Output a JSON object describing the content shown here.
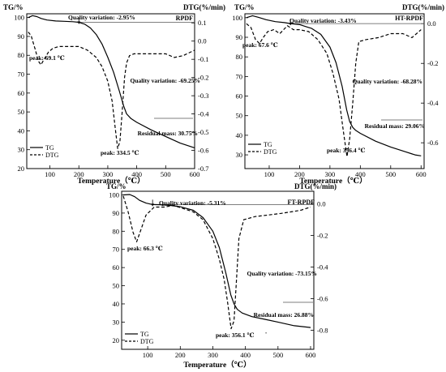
{
  "chart_data": [
    {
      "type": "line",
      "title": "RPDF",
      "xlabel": "Temperature（℃）",
      "ylabel_left": "TG/%",
      "ylabel_right": "DTG(%/min)",
      "xlim": [
        20,
        600
      ],
      "ylim_left": [
        20,
        102
      ],
      "ylim_right": [
        -0.7,
        0.15
      ],
      "xticks": [
        100,
        200,
        300,
        400,
        500,
        600
      ],
      "yticks_left": [
        20,
        30,
        40,
        50,
        60,
        70,
        80,
        90,
        100
      ],
      "yticks_right": [
        0.1,
        0.0,
        -0.1,
        -0.2,
        -0.3,
        -0.4,
        -0.5,
        -0.6,
        -0.7
      ],
      "xtick_labels": [
        "100",
        "200",
        "300",
        "400",
        "500",
        "600"
      ],
      "ytick_labels_left": [
        "20",
        "30",
        "40",
        "50",
        "60",
        "70",
        "80",
        "90",
        "100"
      ],
      "ytick_labels_right": [
        "0.1",
        "0.0",
        "-0.1",
        "-0.2",
        "-0.3",
        "-0.4",
        "-0.5",
        "-0.6",
        "-0.7"
      ],
      "ref_y": 97.5,
      "ref_x": 200,
      "legend": {
        "position": "bottom-left",
        "entries": [
          "TG",
          "DTG"
        ]
      },
      "series": [
        {
          "name": "TG",
          "axis": "left",
          "style": "solid",
          "x": [
            25,
            40,
            55,
            70,
            90,
            120,
            150,
            180,
            200,
            220,
            240,
            260,
            280,
            300,
            320,
            340,
            355,
            365,
            380,
            400,
            450,
            500,
            550,
            600
          ],
          "y": [
            100,
            101,
            100.5,
            99.5,
            98.7,
            98.2,
            98,
            97.8,
            97.5,
            96.5,
            94.5,
            91,
            86,
            79,
            71,
            61,
            53,
            49,
            46.5,
            44.5,
            40.5,
            37,
            33.5,
            31
          ]
        },
        {
          "name": "DTG",
          "axis": "right",
          "style": "dashed",
          "x": [
            25,
            35,
            50,
            60,
            69,
            80,
            95,
            110,
            130,
            160,
            200,
            230,
            260,
            280,
            300,
            315,
            325,
            334,
            342,
            350,
            358,
            365,
            375,
            390,
            420,
            460,
            500,
            530,
            560,
            600
          ],
          "y": [
            0.05,
            0.03,
            -0.05,
            -0.11,
            -0.13,
            -0.1,
            -0.06,
            -0.04,
            -0.03,
            -0.03,
            -0.03,
            -0.05,
            -0.09,
            -0.14,
            -0.22,
            -0.33,
            -0.47,
            -0.59,
            -0.55,
            -0.38,
            -0.2,
            -0.12,
            -0.08,
            -0.07,
            -0.07,
            -0.07,
            -0.07,
            -0.09,
            -0.08,
            -0.05
          ]
        }
      ],
      "annotations": [
        {
          "text": "Quality variation: -2.95%",
          "x": 205,
          "y_axis": "left",
          "y": 100
        },
        {
          "text": "peak: 69.1 ℃",
          "x": 33,
          "y_axis": "left",
          "y": 72
        },
        {
          "text": "Quality variation: -69.25%",
          "x": 380,
          "y_axis": "left",
          "y": 53
        },
        {
          "text": "Residual mass: 30.75%",
          "x": 445,
          "y_axis": "left",
          "y": 28.5
        },
        {
          "text": "peak: 334.5 ℃",
          "x": 295,
          "y_axis": "left",
          "y": 20
        }
      ]
    },
    {
      "type": "line",
      "title": "HT-RPDF",
      "xlabel": "Temperature（℃）",
      "ylabel_left": "TG/%",
      "ylabel_right": "DTG(%/min)",
      "xlim": [
        20,
        610
      ],
      "ylim_left": [
        23,
        102
      ],
      "ylim_right": [
        -0.73,
        0.05
      ],
      "xticks": [
        100,
        200,
        300,
        400,
        500,
        600
      ],
      "yticks_left": [
        30,
        40,
        50,
        60,
        70,
        80,
        90,
        100
      ],
      "yticks_right": [
        0.0,
        -0.2,
        -0.4,
        -0.6
      ],
      "xtick_labels": [
        "100",
        "200",
        "300",
        "400",
        "500",
        "600"
      ],
      "ytick_labels_left": [
        "30",
        "40",
        "50",
        "60",
        "70",
        "80",
        "90",
        "100"
      ],
      "ytick_labels_right": [
        "0.0",
        "-0.2",
        "-0.4",
        "-0.6"
      ],
      "ref_y": 97,
      "ref_x": 170,
      "legend": {
        "position": "bottom-left",
        "entries": [
          "TG",
          "DTG"
        ]
      },
      "series": [
        {
          "name": "TG",
          "axis": "left",
          "style": "solid",
          "x": [
            25,
            45,
            65,
            90,
            120,
            150,
            170,
            200,
            240,
            270,
            300,
            320,
            340,
            355,
            365,
            375,
            385,
            400,
            450,
            500,
            550,
            580,
            600
          ],
          "y": [
            100,
            101,
            100.2,
            99,
            98,
            97.5,
            97,
            96.5,
            94.5,
            91.5,
            85,
            77,
            65,
            53,
            47,
            44,
            42.5,
            41,
            37,
            34,
            31.5,
            30,
            29.5
          ]
        },
        {
          "name": "DTG",
          "axis": "right",
          "style": "dashed",
          "x": [
            25,
            40,
            55,
            68,
            80,
            95,
            115,
            135,
            160,
            180,
            200,
            230,
            260,
            290,
            310,
            330,
            345,
            356,
            365,
            375,
            385,
            395,
            420,
            460,
            500,
            540,
            570,
            600
          ],
          "y": [
            0.0,
            -0.02,
            -0.08,
            -0.1,
            -0.07,
            -0.04,
            -0.03,
            -0.05,
            -0.01,
            -0.03,
            -0.03,
            -0.04,
            -0.08,
            -0.15,
            -0.25,
            -0.38,
            -0.55,
            -0.67,
            -0.58,
            -0.4,
            -0.2,
            -0.09,
            -0.08,
            -0.07,
            -0.05,
            -0.05,
            -0.07,
            -0.03
          ]
        }
      ],
      "annotations": [
        {
          "text": "Quality variation: -3.43%",
          "x": 168,
          "y_axis": "left",
          "y": 100
        },
        {
          "text": "peak: 67.6 ℃",
          "x": 30,
          "y_axis": "left",
          "y": 87
        },
        {
          "text": "Quality variation: -68.28%",
          "x": 382,
          "y_axis": "left",
          "y": 56
        },
        {
          "text": "Residual mass: 29.06%",
          "x": 425,
          "y_axis": "left",
          "y": 27.5
        },
        {
          "text": "peak: 356.4 ℃",
          "x": 298,
          "y_axis": "left",
          "y": 18
        }
      ]
    },
    {
      "type": "line",
      "title": "FT-RPDF",
      "xlabel": "Temperature（℃）",
      "ylabel_left": "TG/%",
      "ylabel_right": "DTG(%/min)",
      "xlim": [
        20,
        610
      ],
      "ylim_left": [
        15,
        102
      ],
      "ylim_right": [
        -0.92,
        0.08
      ],
      "xticks": [
        100,
        200,
        300,
        400,
        500,
        600
      ],
      "yticks_left": [
        20,
        30,
        40,
        50,
        60,
        70,
        80,
        90,
        100
      ],
      "yticks_right": [
        0.0,
        -0.2,
        -0.4,
        -0.6,
        -0.8
      ],
      "xtick_labels": [
        "100",
        "200",
        "300",
        "400",
        "500",
        "600"
      ],
      "ytick_labels_left": [
        "20",
        "30",
        "40",
        "50",
        "60",
        "70",
        "80",
        "90",
        "100"
      ],
      "ytick_labels_right": [
        "0.0",
        "-0.2",
        "-0.4",
        "-0.6",
        "-0.8"
      ],
      "ref_y": 94.7,
      "ref_x": 115,
      "legend": {
        "position": "bottom-left",
        "entries": [
          "TG",
          "DTG"
        ]
      },
      "series": [
        {
          "name": "TG",
          "axis": "left",
          "style": "solid",
          "x": [
            25,
            45,
            60,
            75,
            95,
            115,
            140,
            170,
            200,
            240,
            270,
            300,
            320,
            340,
            355,
            365,
            375,
            390,
            420,
            460,
            500,
            550,
            600
          ],
          "y": [
            100,
            100.2,
            99,
            97,
            95.5,
            94.7,
            94.6,
            94.2,
            93.5,
            91.5,
            87.5,
            80,
            71,
            57,
            45,
            40,
            37,
            35,
            33,
            31.5,
            30,
            28,
            27
          ]
        },
        {
          "name": "DTG",
          "axis": "right",
          "style": "dashed",
          "x": [
            25,
            40,
            55,
            66,
            78,
            95,
            120,
            150,
            180,
            210,
            240,
            270,
            300,
            320,
            335,
            345,
            356,
            365,
            372,
            380,
            395,
            430,
            470,
            510,
            540,
            570,
            600
          ],
          "y": [
            0.05,
            -0.05,
            -0.18,
            -0.24,
            -0.17,
            -0.07,
            -0.02,
            -0.02,
            -0.01,
            -0.03,
            -0.05,
            -0.1,
            -0.22,
            -0.35,
            -0.48,
            -0.62,
            -0.79,
            -0.74,
            -0.5,
            -0.22,
            -0.1,
            -0.08,
            -0.07,
            -0.06,
            -0.05,
            -0.04,
            -0.02
          ]
        }
      ],
      "annotations": [
        {
          "text": "Quality variation: -5.31%",
          "x": 122,
          "y_axis": "left",
          "y": 100
        },
        {
          "text": "peak: 66.3 ℃",
          "x": 30,
          "y_axis": "left",
          "y": 66
        },
        {
          "text": "Quality variation: -73.15%",
          "x": 370,
          "y_axis": "left",
          "y": 49
        },
        {
          "text": "Residual mass: 26.88%",
          "x": 435,
          "y_axis": "left",
          "y": 29
        },
        {
          "text": "peak: 356.1 ℃",
          "x": 290,
          "y_axis": "left",
          "y": 12
        },
        {
          "text": "'",
          "x": 460,
          "y_axis": "left",
          "y": 12
        }
      ]
    }
  ]
}
